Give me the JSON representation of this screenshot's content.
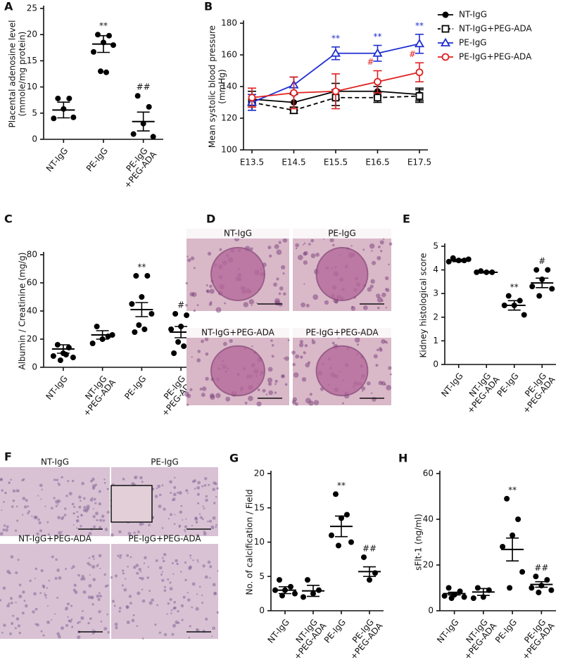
{
  "chart_data": [
    {
      "type": "dot",
      "panel": "A",
      "ylabel": [
        "Placental adenosine level",
        "(mmole/mg protein)"
      ],
      "categories": [
        [
          "NT-IgG"
        ],
        [
          "PE-IgG"
        ],
        [
          "PE-IgG",
          "+PEG-ADA"
        ]
      ],
      "points": [
        [
          7.8,
          7.8,
          5.8,
          4.0,
          4.2
        ],
        [
          20,
          19.8,
          18.5,
          16.7,
          18,
          13,
          12.8
        ],
        [
          8.3,
          6.2,
          3,
          1,
          0.5
        ]
      ],
      "means": [
        5.6,
        18.2,
        3.4
      ],
      "sem": [
        1.5,
        1.6,
        1.8
      ],
      "annotations": [
        null,
        "**",
        "##"
      ],
      "color": "#000000",
      "ylim": [
        0,
        25
      ],
      "yticks": [
        0,
        5,
        10,
        15,
        20,
        25
      ]
    },
    {
      "type": "line",
      "panel": "B",
      "ylabel": [
        "Mean systolic blood pressure",
        "(mmHg)"
      ],
      "categories": [
        "E13.5",
        "E14.5",
        "E15.5",
        "E16.5",
        "E17.5"
      ],
      "series": [
        {
          "name": "NT-IgG",
          "color": "#000000",
          "marker": "circle-filled",
          "dash": false,
          "values": [
            132,
            130,
            137,
            137,
            135
          ],
          "errors": [
            5,
            5,
            5,
            3,
            4
          ],
          "annotations": [
            null,
            null,
            null,
            null,
            null
          ]
        },
        {
          "name": "NT-IgG+PEG-ADA",
          "color": "#000000",
          "marker": "square-open",
          "dash": true,
          "values": [
            130,
            125,
            133,
            133,
            134
          ],
          "errors": [
            5,
            2,
            5,
            3,
            4
          ],
          "annotations": [
            null,
            null,
            null,
            null,
            null
          ]
        },
        {
          "name": "PE-IgG",
          "color": "#1f2fd0",
          "marker": "triangle-open",
          "dash": false,
          "values": [
            130,
            141,
            161,
            161,
            167
          ],
          "errors": [
            5,
            5,
            4,
            5,
            6
          ],
          "annotations": [
            null,
            null,
            "**",
            "**",
            "**"
          ]
        },
        {
          "name": "PE-IgG+PEG-ADA",
          "color": "#e02020",
          "marker": "circle-open",
          "dash": false,
          "values": [
            133,
            136,
            137,
            143,
            149
          ],
          "errors": [
            6,
            10,
            11,
            7,
            6
          ],
          "annotations": [
            null,
            null,
            null,
            "#",
            "#"
          ]
        }
      ],
      "legend": "right",
      "ylim": [
        100,
        180
      ],
      "yticks": [
        100,
        120,
        140,
        160,
        180
      ]
    },
    {
      "type": "dot",
      "panel": "C",
      "ylabel": [
        "Albumin / Creatinine (mg/g)"
      ],
      "categories": [
        [
          "NT-IgG"
        ],
        [
          "NT-IgG",
          "+PEG-ADA"
        ],
        [
          "PE-IgG"
        ],
        [
          "PE-IgG",
          "+PEG-ADA"
        ]
      ],
      "points": [
        [
          16,
          14,
          10,
          8,
          7,
          5,
          9
        ],
        [
          29,
          22,
          20,
          17,
          23
        ],
        [
          65,
          65,
          50,
          45,
          38,
          30,
          27,
          25
        ],
        [
          38,
          37,
          29,
          27,
          22,
          18,
          15,
          10
        ]
      ],
      "means": [
        13,
        23,
        41,
        25
      ],
      "sem": [
        3,
        3,
        5,
        4
      ],
      "annotations": [
        null,
        null,
        "**",
        "#"
      ],
      "color": "#000000",
      "ylim": [
        0,
        80
      ],
      "yticks": [
        0,
        20,
        40,
        60,
        80
      ]
    },
    {
      "type": "dot",
      "panel": "E",
      "ylabel": [
        "Kidney histological score"
      ],
      "categories": [
        [
          "NT-IgG"
        ],
        [
          "NT-IgG",
          "+PEG-ADA"
        ],
        [
          "PE-IgG"
        ],
        [
          "PE-IgG",
          "+PEG-ADA"
        ]
      ],
      "points": [
        [
          4.5,
          4.4,
          4.4,
          4.35,
          4.45
        ],
        [
          3.95,
          3.9,
          3.9,
          3.9
        ],
        [
          2.9,
          2.7,
          2.5,
          2.5,
          2.1
        ],
        [
          4.0,
          4.0,
          3.6,
          3.3,
          3.2,
          2.9
        ]
      ],
      "means": [
        4.4,
        3.9,
        2.5,
        3.45
      ],
      "sem": [
        0.05,
        0.03,
        0.2,
        0.2
      ],
      "annotations": [
        null,
        null,
        "**",
        "#"
      ],
      "color": "#000000",
      "ylim": [
        0,
        5
      ],
      "yticks": [
        0,
        1,
        2,
        3,
        4,
        5
      ]
    },
    {
      "type": "dot",
      "panel": "G",
      "ylabel": [
        "No. of calcification / Field"
      ],
      "categories": [
        [
          "NT-IgG"
        ],
        [
          "NT-IgG",
          "+PEG-ADA"
        ],
        [
          "PE-IgG"
        ],
        [
          "PE-IgG",
          "+PEG-ADA"
        ]
      ],
      "points": [
        [
          4.5,
          3.5,
          3,
          3,
          2.5,
          2.2
        ],
        [
          4.5,
          3,
          2.5,
          2
        ],
        [
          17,
          14,
          13.5,
          11,
          10,
          9.5
        ],
        [
          7.8,
          5.5,
          4.5
        ]
      ],
      "means": [
        3,
        2.9,
        12.3,
        5.7
      ],
      "sem": [
        0.5,
        0.8,
        1.5,
        0.7
      ],
      "annotations": [
        null,
        null,
        "**",
        "##"
      ],
      "color": "#000000",
      "ylim": [
        0,
        20
      ],
      "yticks": [
        0,
        5,
        10,
        15,
        20
      ]
    },
    {
      "type": "dot",
      "panel": "H",
      "ylabel": [
        "sFlt-1 (ng/ml)"
      ],
      "categories": [
        [
          "NT-IgG"
        ],
        [
          "NT-IgG",
          "+PEG-ADA"
        ],
        [
          "PE-IgG"
        ],
        [
          "PE-IgG",
          "+PEG-ADA"
        ]
      ],
      "points": [
        [
          10,
          8.5,
          7,
          6.5,
          6,
          5.5
        ],
        [
          10,
          9,
          6,
          5.5
        ],
        [
          49,
          40,
          33,
          28,
          17,
          10
        ],
        [
          15,
          13.5,
          11,
          10,
          9,
          8
        ]
      ],
      "means": [
        7.5,
        8.2,
        26.8,
        11.5
      ],
      "sem": [
        0.6,
        1.5,
        5,
        1.2
      ],
      "annotations": [
        null,
        null,
        "**",
        "##"
      ],
      "color": "#000000",
      "ylim": [
        0,
        60
      ],
      "yticks": [
        0,
        20,
        40,
        60
      ]
    }
  ],
  "images": [
    {
      "panel": "D",
      "labels": [
        "NT-IgG",
        "PE-IgG",
        "NT-IgG+PEG-ADA",
        "PE-IgG+PEG-ADA"
      ]
    },
    {
      "panel": "F",
      "labels": [
        "NT-IgG",
        "PE-IgG",
        "NT-IgG+PEG-ADA",
        "PE-IgG+PEG-ADA"
      ]
    }
  ]
}
